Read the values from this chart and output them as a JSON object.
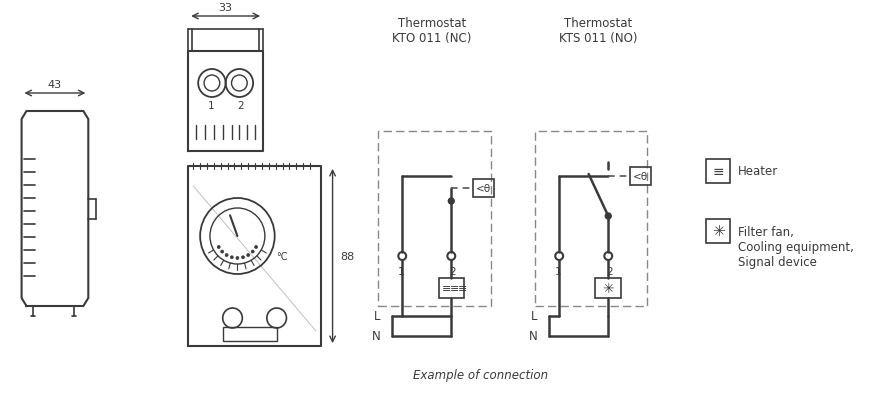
{
  "bg_color": "#ffffff",
  "line_color": "#3a3a3a",
  "dash_color": "#888888",
  "title_kto": "Thermostat\nKTO 011 (NC)",
  "title_kts": "Thermostat\nKTS 011 (NO)",
  "legend_heater": "Heater",
  "legend_fan": "Filter fan,\nCooling equipment,\nSignal device",
  "example_text": "Example of connection",
  "dim_33": "33",
  "dim_43": "43",
  "dim_88": "88"
}
